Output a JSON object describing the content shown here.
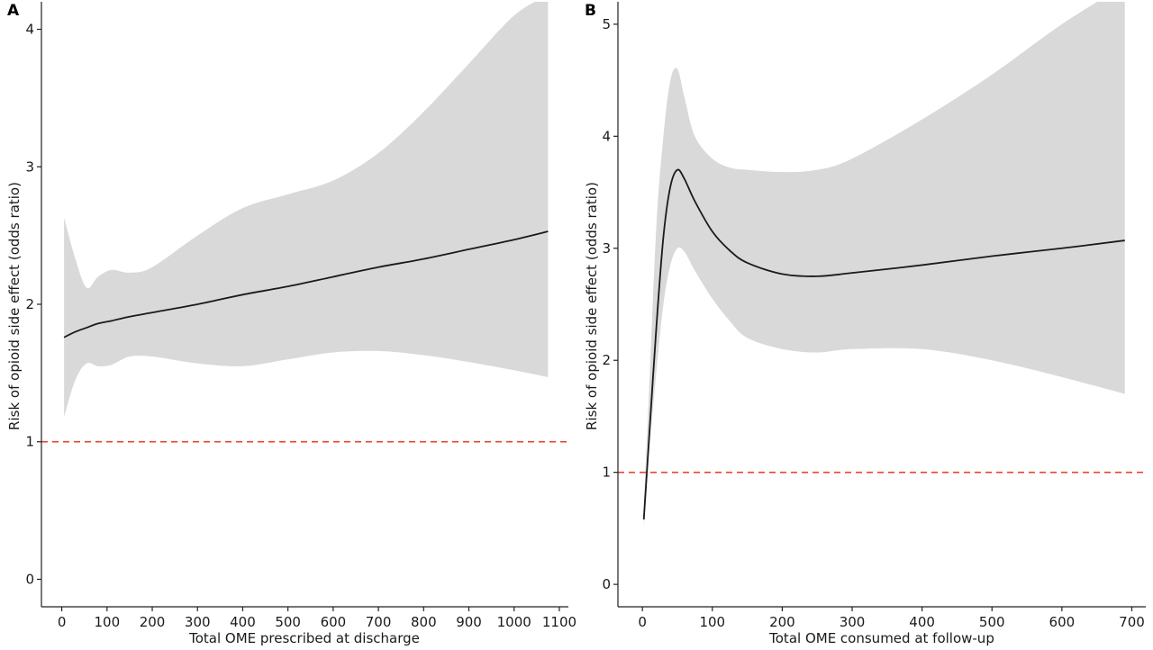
{
  "chart_data": [
    {
      "type": "line",
      "panel_label": "A",
      "xlabel": "Total OME prescribed at discharge",
      "ylabel": "Risk of opioid side effect (odds ratio)",
      "xlim": [
        -45,
        1120
      ],
      "ylim": [
        -0.2,
        4.2
      ],
      "xticks": [
        0,
        100,
        200,
        300,
        400,
        500,
        600,
        700,
        800,
        900,
        1000,
        1100
      ],
      "yticks": [
        0,
        1,
        2,
        3,
        4
      ],
      "reference_line": {
        "y": 1,
        "style": "dashed",
        "color": "#e8432c"
      },
      "colors": {
        "line": "#1a1a1a",
        "ribbon": "#d9d9d9",
        "axis": "#222222"
      },
      "series": [
        {
          "x": [
            5,
            30,
            55,
            80,
            110,
            150,
            200,
            300,
            400,
            500,
            600,
            700,
            800,
            900,
            1000,
            1075
          ],
          "y": [
            1.76,
            1.8,
            1.83,
            1.86,
            1.88,
            1.91,
            1.94,
            2.0,
            2.07,
            2.13,
            2.2,
            2.27,
            2.33,
            2.4,
            2.47,
            2.53
          ],
          "lower": [
            1.18,
            1.45,
            1.57,
            1.55,
            1.56,
            1.62,
            1.62,
            1.57,
            1.55,
            1.6,
            1.65,
            1.66,
            1.63,
            1.58,
            1.52,
            1.47
          ],
          "upper": [
            2.63,
            2.33,
            2.12,
            2.2,
            2.25,
            2.23,
            2.27,
            2.5,
            2.7,
            2.8,
            2.9,
            3.1,
            3.4,
            3.75,
            4.1,
            4.25
          ]
        }
      ]
    },
    {
      "type": "line",
      "panel_label": "B",
      "xlabel": "Total OME consumed at follow-up",
      "ylabel": "Risk of opioid side effect (odds ratio)",
      "xlim": [
        -35,
        720
      ],
      "ylim": [
        -0.2,
        5.2
      ],
      "xticks": [
        0,
        100,
        200,
        300,
        400,
        500,
        600,
        700
      ],
      "yticks": [
        0,
        1,
        2,
        3,
        4,
        5
      ],
      "reference_line": {
        "y": 1,
        "style": "dashed",
        "color": "#e8432c"
      },
      "colors": {
        "line": "#1a1a1a",
        "ribbon": "#d9d9d9",
        "axis": "#222222"
      },
      "series": [
        {
          "x": [
            2,
            10,
            20,
            30,
            40,
            50,
            60,
            75,
            100,
            125,
            150,
            200,
            250,
            300,
            400,
            500,
            600,
            690
          ],
          "y": [
            0.58,
            1.35,
            2.3,
            3.1,
            3.55,
            3.7,
            3.62,
            3.42,
            3.15,
            2.98,
            2.87,
            2.77,
            2.75,
            2.78,
            2.85,
            2.93,
            3.0,
            3.07
          ],
          "lower": [
            0.5,
            1.2,
            1.9,
            2.5,
            2.85,
            3.0,
            2.97,
            2.8,
            2.55,
            2.35,
            2.2,
            2.1,
            2.07,
            2.1,
            2.1,
            2.0,
            1.85,
            1.7
          ],
          "upper": [
            0.7,
            1.8,
            3.2,
            4.0,
            4.5,
            4.6,
            4.35,
            4.0,
            3.8,
            3.72,
            3.7,
            3.68,
            3.7,
            3.8,
            4.15,
            4.55,
            5.0,
            5.35
          ]
        }
      ]
    }
  ]
}
